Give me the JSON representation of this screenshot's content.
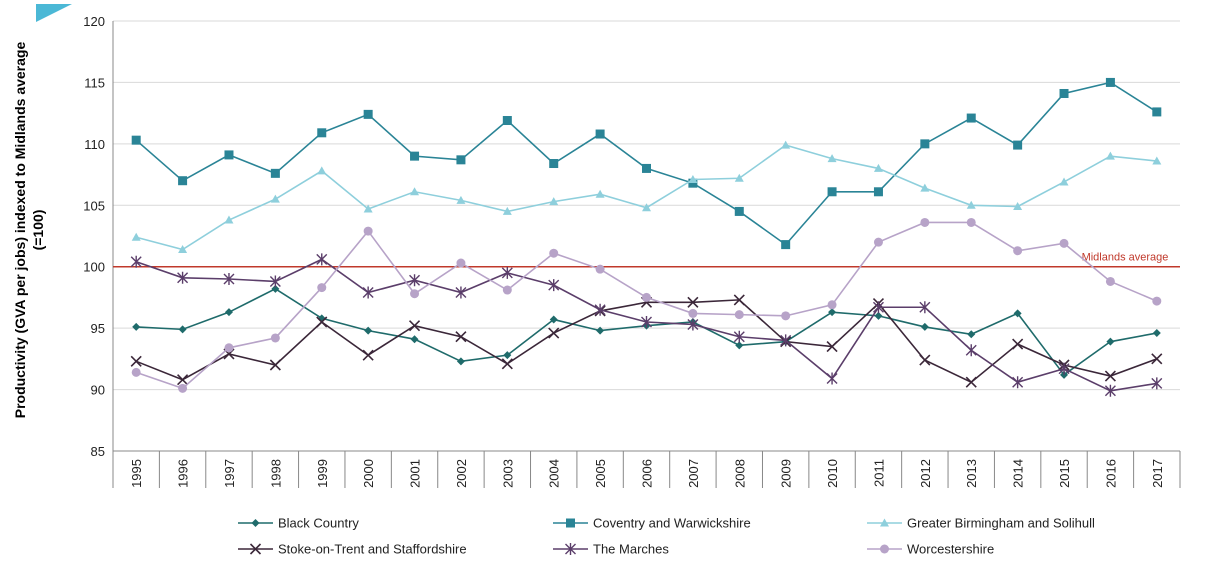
{
  "chart_data": {
    "type": "line",
    "title": "",
    "xlabel": "",
    "ylabel": "Productivity (GVA per jobs) indexed to Midlands average",
    "ylabel_line2": "(=100)",
    "ylim": [
      85,
      120
    ],
    "yticks": [
      85,
      90,
      95,
      100,
      105,
      110,
      115,
      120
    ],
    "grid": true,
    "legend_position": "bottom",
    "categories": [
      "1995",
      "1996",
      "1997",
      "1998",
      "1999",
      "2000",
      "2001",
      "2002",
      "2003",
      "2004",
      "2005",
      "2006",
      "2007",
      "2008",
      "2009",
      "2010",
      "2011",
      "2012",
      "2013",
      "2014",
      "2015",
      "2016",
      "2017"
    ],
    "reference_line": {
      "label": "Midlands average",
      "value": 100,
      "color": "#c0392b"
    },
    "corner_mark_color": "#4bb8d6",
    "series": [
      {
        "name": "Black Country",
        "color": "#1f6b6b",
        "marker": "diamond",
        "values": [
          95.1,
          94.9,
          96.3,
          98.2,
          95.8,
          94.8,
          94.1,
          92.3,
          92.8,
          95.7,
          94.8,
          95.2,
          95.5,
          93.6,
          93.9,
          96.3,
          96.0,
          95.1,
          94.5,
          96.2,
          91.2,
          93.9,
          94.6
        ]
      },
      {
        "name": "Coventry and Warwickshire",
        "color": "#2a8496",
        "marker": "square",
        "values": [
          110.3,
          107.0,
          109.1,
          107.6,
          110.9,
          112.4,
          109.0,
          108.7,
          111.9,
          108.4,
          110.8,
          108.0,
          106.8,
          104.5,
          101.8,
          106.1,
          106.1,
          110.0,
          112.1,
          109.9,
          114.1,
          115.0,
          112.6
        ]
      },
      {
        "name": "Greater Birmingham and Solihull",
        "color": "#8ecfdc",
        "marker": "triangle",
        "values": [
          102.4,
          101.4,
          103.8,
          105.5,
          107.8,
          104.7,
          106.1,
          105.4,
          104.5,
          105.3,
          105.9,
          104.8,
          107.1,
          107.2,
          109.9,
          108.8,
          108.0,
          106.4,
          105.0,
          104.9,
          106.9,
          109.0,
          108.6
        ]
      },
      {
        "name": "Stoke-on-Trent and Staffordshire",
        "color": "#3b2739",
        "marker": "x",
        "values": [
          92.3,
          90.8,
          92.9,
          92.0,
          95.5,
          92.8,
          95.2,
          94.3,
          92.1,
          94.6,
          96.4,
          97.1,
          97.1,
          97.3,
          93.9,
          93.5,
          97.0,
          92.4,
          90.6,
          93.7,
          92.0,
          91.1,
          92.5
        ]
      },
      {
        "name": "The Marches",
        "color": "#5b3e6a",
        "marker": "star",
        "values": [
          100.4,
          99.1,
          99.0,
          98.8,
          100.6,
          97.9,
          98.9,
          97.9,
          99.5,
          98.5,
          96.5,
          95.5,
          95.3,
          94.3,
          94.0,
          90.9,
          96.7,
          96.7,
          93.2,
          90.6,
          91.7,
          89.9,
          90.5
        ]
      },
      {
        "name": "Worcestershire",
        "color": "#b7a3c8",
        "marker": "circle",
        "values": [
          91.4,
          90.1,
          93.4,
          94.2,
          98.3,
          102.9,
          97.8,
          100.3,
          98.1,
          101.1,
          99.8,
          97.5,
          96.2,
          96.1,
          96.0,
          96.9,
          102.0,
          103.6,
          103.6,
          101.3,
          101.9,
          98.8,
          97.2
        ]
      }
    ]
  }
}
